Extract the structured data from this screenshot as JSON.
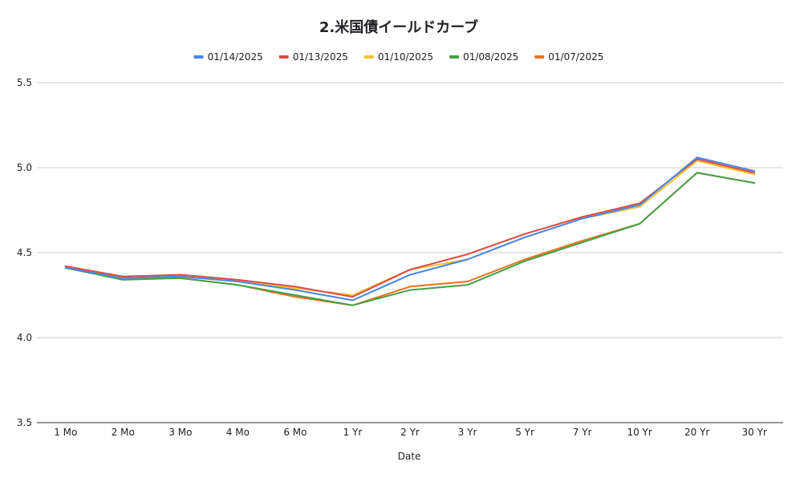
{
  "chart_data": {
    "type": "line",
    "title": "2.米国債イールドカーブ",
    "xlabel": "Date",
    "ylabel": "",
    "ylim": [
      3.5,
      5.5
    ],
    "yticks": [
      "3.5",
      "4.0",
      "4.5",
      "5.0",
      "5.5"
    ],
    "grid": true,
    "legend_position": "top",
    "categories": [
      "1 Mo",
      "2 Mo",
      "3 Mo",
      "4 Mo",
      "6 Mo",
      "1 Yr",
      "2 Yr",
      "3 Yr",
      "5 Yr",
      "7 Yr",
      "10 Yr",
      "20 Yr",
      "30 Yr"
    ],
    "series": [
      {
        "name": "01/14/2025",
        "color": "#4a86e8",
        "values": [
          4.41,
          4.35,
          4.36,
          4.33,
          4.28,
          4.22,
          4.37,
          4.46,
          4.59,
          4.7,
          4.78,
          5.06,
          4.98
        ]
      },
      {
        "name": "01/13/2025",
        "color": "#dc4a3f",
        "values": [
          4.42,
          4.36,
          4.37,
          4.34,
          4.3,
          4.24,
          4.4,
          4.49,
          4.61,
          4.71,
          4.79,
          5.05,
          4.97
        ]
      },
      {
        "name": "01/10/2025",
        "color": "#f1c232",
        "values": [
          4.42,
          4.35,
          4.36,
          4.33,
          4.29,
          4.25,
          4.4,
          4.46,
          4.59,
          4.7,
          4.77,
          5.04,
          4.96
        ]
      },
      {
        "name": "01/08/2025",
        "color": "#43a047",
        "values": [
          4.41,
          4.34,
          4.35,
          4.31,
          4.25,
          4.19,
          4.28,
          4.31,
          4.45,
          4.56,
          4.67,
          4.97,
          4.91
        ]
      },
      {
        "name": "01/07/2025",
        "color": "#e8711a",
        "values": [
          4.42,
          4.35,
          4.35,
          4.31,
          4.24,
          4.19,
          4.3,
          4.33,
          4.46,
          4.57,
          4.67,
          4.97,
          4.91
        ]
      }
    ]
  }
}
